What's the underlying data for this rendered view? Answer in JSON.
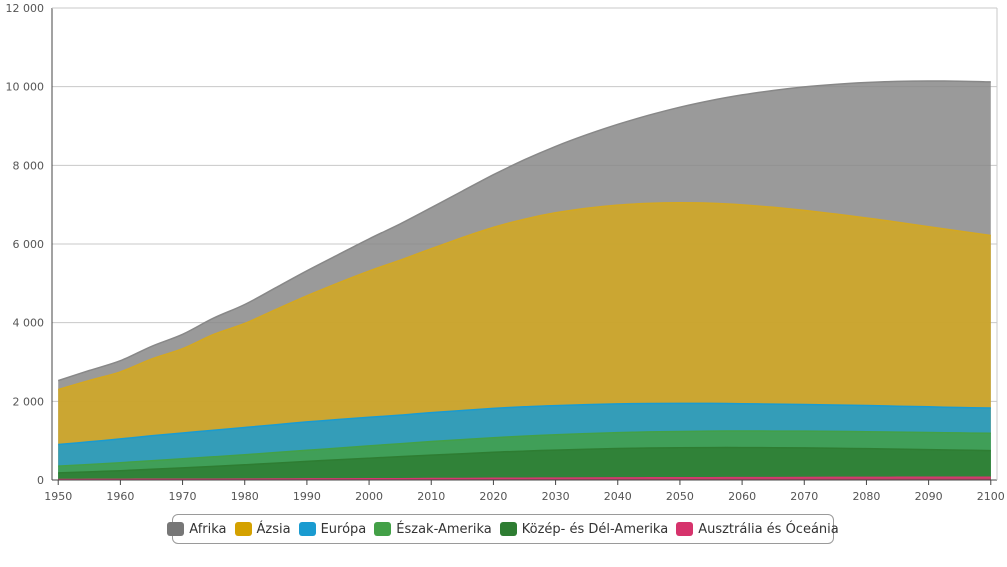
{
  "chart_data": {
    "type": "area",
    "stacked": true,
    "x": [
      1950,
      1955,
      1960,
      1965,
      1970,
      1975,
      1980,
      1985,
      1990,
      1995,
      2000,
      2005,
      2010,
      2015,
      2020,
      2025,
      2030,
      2035,
      2040,
      2045,
      2050,
      2055,
      2060,
      2065,
      2070,
      2075,
      2080,
      2085,
      2090,
      2095,
      2100
    ],
    "x_ticks": [
      "1950",
      "1960",
      "1970",
      "1980",
      "1990",
      "2000",
      "2010",
      "2020",
      "2030",
      "2040",
      "2050",
      "2060",
      "2070",
      "2080",
      "2090",
      "2100"
    ],
    "y_ticks": [
      "0",
      "2 000",
      "4 000",
      "6 000",
      "8 000",
      "10 000",
      "12 000"
    ],
    "ylim": [
      0,
      12000
    ],
    "xlim": [
      1949,
      2101
    ],
    "grid": true,
    "legend_position": "bottom",
    "series": [
      {
        "name": "Ausztrália és Óceánia",
        "color": "#d6386f",
        "values": [
          13,
          14,
          16,
          18,
          20,
          21,
          23,
          25,
          27,
          29,
          31,
          34,
          37,
          39,
          43,
          45,
          48,
          50,
          53,
          55,
          57,
          59,
          61,
          62,
          64,
          65,
          67,
          68,
          69,
          70,
          72
        ]
      },
      {
        "name": "Közép- és Dél-Amerika",
        "color": "#2e7d32",
        "values": [
          168,
          193,
          220,
          253,
          288,
          325,
          363,
          404,
          447,
          484,
          523,
          560,
          597,
          630,
          662,
          690,
          713,
          732,
          747,
          758,
          764,
          766,
          764,
          759,
          752,
          742,
          731,
          718,
          704,
          690,
          676
        ]
      },
      {
        "name": "Észak-Amerika",
        "color": "#43a047",
        "values": [
          172,
          187,
          204,
          219,
          231,
          243,
          255,
          269,
          281,
          298,
          313,
          328,
          344,
          358,
          370,
          381,
          390,
          398,
          404,
          409,
          413,
          417,
          420,
          423,
          426,
          428,
          431,
          433,
          435,
          437,
          439
        ]
      },
      {
        "name": "Európa",
        "color": "#1a9bd0",
        "values": [
          549,
          576,
          605,
          634,
          657,
          677,
          694,
          708,
          721,
          727,
          726,
          729,
          736,
          741,
          745,
          744,
          741,
          736,
          730,
          722,
          714,
          705,
          695,
          686,
          678,
          671,
          664,
          658,
          652,
          647,
          643
        ]
      },
      {
        "name": "Ázsia",
        "color": "#d4a820",
        "values": [
          1396,
          1560,
          1704,
          1950,
          2143,
          2433,
          2645,
          2928,
          3208,
          3467,
          3719,
          3937,
          4166,
          4394,
          4601,
          4771,
          4901,
          4993,
          5054,
          5089,
          5100,
          5088,
          5054,
          5002,
          4934,
          4856,
          4769,
          4677,
          4581,
          4484,
          4386
        ]
      },
      {
        "name": "Afrika",
        "color": "#888888",
        "values": [
          228,
          254,
          285,
          322,
          366,
          418,
          481,
          556,
          635,
          720,
          818,
          924,
          1044,
          1182,
          1340,
          1511,
          1688,
          1869,
          2054,
          2241,
          2429,
          2614,
          2796,
          2971,
          3139,
          3296,
          3444,
          3580,
          3703,
          3811,
          3906
        ]
      }
    ],
    "legend": [
      {
        "label": "Afrika",
        "color": "#777777"
      },
      {
        "label": "Ázsia",
        "color": "#d4a100"
      },
      {
        "label": "Európa",
        "color": "#1a9bd0"
      },
      {
        "label": "Észak-Amerika",
        "color": "#43a047"
      },
      {
        "label": "Közép- és Dél-Amerika",
        "color": "#2e7d32"
      },
      {
        "label": "Ausztrália és Óceánia",
        "color": "#d6336c"
      }
    ]
  }
}
